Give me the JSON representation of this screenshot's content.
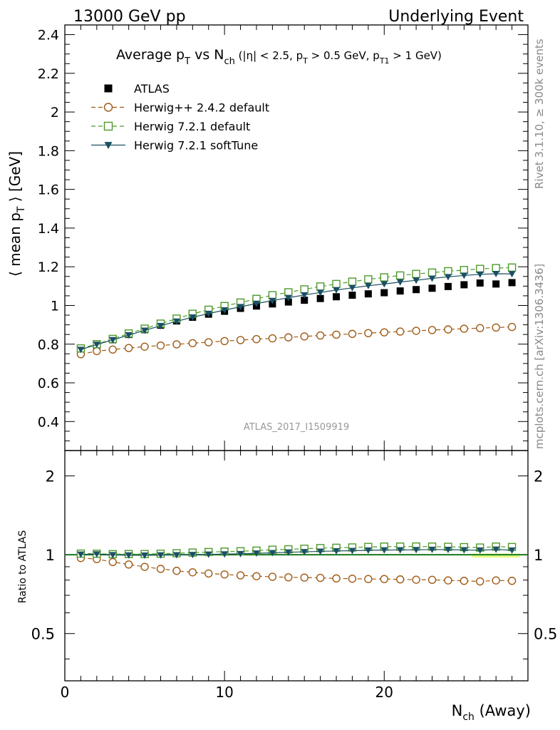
{
  "header": {
    "left": "13000 GeV pp",
    "right": "Underlying Event"
  },
  "side": {
    "rivet": "Rivet 3.1.10, ≥ 300k events",
    "mcplots": "mcplots.cern.ch [arXiv:1306.3436]"
  },
  "watermark": "ATLAS_2017_I1509919",
  "title": {
    "t1": "Average p",
    "t1sub": "T",
    "t2": " vs N",
    "t2sub": "ch",
    "t3": " (|η| < 2.5, p",
    "t3sub": "T",
    "t4": " > 0.5 GeV, p",
    "t4sub": "T1",
    "t5": " > 1 GeV)"
  },
  "axes": {
    "ylabel_main": "⟨ mean p",
    "ylabel_main_sub": "T",
    "ylabel_main_tail": " ⟩ [GeV]",
    "ylabel_ratio": "Ratio to ATLAS",
    "xlabel": "N",
    "xlabel_sub": "ch",
    "xlabel_tail": " (Away)"
  },
  "colors": {
    "atlas": "#000000",
    "herwigpp": "#a05a14",
    "h721": "#4c9a2a",
    "soft": "#1b4f63",
    "band": "#ddff66"
  },
  "chart_data": {
    "type": "scatter",
    "x": [
      1,
      2,
      3,
      4,
      5,
      6,
      7,
      8,
      9,
      10,
      11,
      12,
      13,
      14,
      15,
      16,
      17,
      18,
      19,
      20,
      21,
      22,
      23,
      24,
      25,
      26,
      27,
      28
    ],
    "xlim": [
      0,
      29
    ],
    "ylim": [
      0.25,
      2.45
    ],
    "ratio_ylim_log": [
      0.33,
      2.5
    ],
    "x_ticks": [
      0,
      10,
      20
    ],
    "y_ticks": [
      0.4,
      0.6,
      0.8,
      1,
      1.2,
      1.4,
      1.6,
      1.8,
      2,
      2.2,
      2.4
    ],
    "ratio_ticks": [
      0.5,
      1,
      2
    ],
    "series": [
      {
        "key": "atlas",
        "name": "ATLAS",
        "marker": "square-filled",
        "values": [
          0.77,
          0.793,
          0.823,
          0.85,
          0.875,
          0.898,
          0.92,
          0.939,
          0.955,
          0.97,
          0.985,
          0.997,
          1.008,
          1.018,
          1.027,
          1.036,
          1.045,
          1.053,
          1.06,
          1.066,
          1.075,
          1.082,
          1.089,
          1.098,
          1.107,
          1.116,
          1.111,
          1.118
        ]
      },
      {
        "key": "herwigpp",
        "name": "Herwig++ 2.4.2 default",
        "marker": "circle-open",
        "dash": "6,4",
        "values": [
          0.748,
          0.764,
          0.772,
          0.78,
          0.787,
          0.793,
          0.799,
          0.805,
          0.81,
          0.816,
          0.821,
          0.826,
          0.83,
          0.835,
          0.84,
          0.845,
          0.849,
          0.853,
          0.857,
          0.861,
          0.865,
          0.869,
          0.873,
          0.876,
          0.88,
          0.883,
          0.886,
          0.889
        ]
      },
      {
        "key": "h721",
        "name": "Herwig 7.2.1 default",
        "marker": "square-open",
        "dash": "6,4",
        "values": [
          0.778,
          0.8,
          0.827,
          0.855,
          0.88,
          0.906,
          0.932,
          0.957,
          0.978,
          0.997,
          1.015,
          1.034,
          1.053,
          1.068,
          1.083,
          1.098,
          1.111,
          1.123,
          1.135,
          1.145,
          1.155,
          1.163,
          1.17,
          1.177,
          1.183,
          1.189,
          1.193,
          1.196
        ]
      },
      {
        "key": "soft",
        "name": "Herwig 7.2.1 softTune",
        "marker": "triangle-down",
        "dash": "",
        "values": [
          0.772,
          0.798,
          0.822,
          0.847,
          0.871,
          0.895,
          0.918,
          0.939,
          0.958,
          0.976,
          0.993,
          1.01,
          1.025,
          1.04,
          1.054,
          1.067,
          1.08,
          1.091,
          1.102,
          1.111,
          1.121,
          1.13,
          1.14,
          1.148,
          1.155,
          1.161,
          1.164,
          1.163
        ]
      }
    ],
    "ratio_series": [
      {
        "key": "herwigpp",
        "values": [
          0.972,
          0.963,
          0.938,
          0.918,
          0.899,
          0.883,
          0.868,
          0.857,
          0.848,
          0.841,
          0.834,
          0.828,
          0.824,
          0.82,
          0.818,
          0.816,
          0.812,
          0.81,
          0.808,
          0.808,
          0.805,
          0.803,
          0.802,
          0.798,
          0.795,
          0.791,
          0.798,
          0.795
        ]
      },
      {
        "key": "h721",
        "values": [
          1.01,
          1.009,
          1.005,
          1.006,
          1.006,
          1.009,
          1.013,
          1.019,
          1.024,
          1.028,
          1.031,
          1.037,
          1.045,
          1.049,
          1.054,
          1.06,
          1.063,
          1.066,
          1.071,
          1.074,
          1.074,
          1.075,
          1.074,
          1.072,
          1.069,
          1.065,
          1.074,
          1.07
        ]
      },
      {
        "key": "soft",
        "values": [
          1.003,
          1.006,
          0.999,
          0.996,
          0.995,
          0.997,
          0.998,
          1.0,
          1.003,
          1.006,
          1.008,
          1.013,
          1.017,
          1.022,
          1.026,
          1.03,
          1.034,
          1.036,
          1.04,
          1.042,
          1.043,
          1.044,
          1.047,
          1.046,
          1.043,
          1.04,
          1.048,
          1.04
        ]
      }
    ]
  }
}
